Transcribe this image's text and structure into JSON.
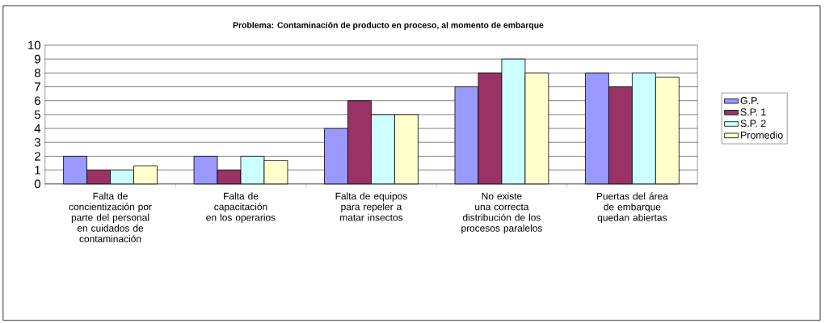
{
  "chart_data": {
    "type": "bar",
    "title": "Problema: Contaminación de producto en proceso, al momento de embarque",
    "categories": [
      "Falta de concientización por parte del personal en cuidados de contaminación",
      "Falta de capacitación en los operarios",
      "Falta de equipos para repeler a matar insectos",
      "No existe una correcta distribución de los procesos paralelos",
      "Puertas del área de embarque quedan abiertas"
    ],
    "series": [
      {
        "name": "G.P.",
        "color": "#9999ff",
        "values": [
          2,
          2,
          4,
          7,
          8
        ]
      },
      {
        "name": "S.P. 1",
        "color": "#993366",
        "values": [
          1,
          1,
          6,
          8,
          7
        ]
      },
      {
        "name": "S.P. 2",
        "color": "#ccffff",
        "values": [
          1,
          2,
          5,
          9,
          8
        ]
      },
      {
        "name": "Promedio",
        "color": "#ffffcc",
        "values": [
          1.3,
          1.7,
          5,
          8,
          7.7
        ]
      }
    ],
    "ylim": [
      0,
      10
    ],
    "yticks": [
      0,
      1,
      2,
      3,
      4,
      5,
      6,
      7,
      8,
      9,
      10
    ],
    "grid": "y",
    "legend": "right"
  }
}
